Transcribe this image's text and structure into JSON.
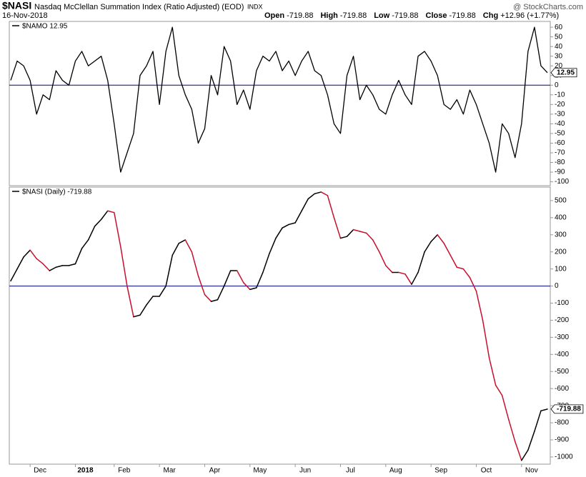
{
  "header": {
    "symbol": "$NASI",
    "name": "Nasdaq McClellan Summation Index (Ratio Adjusted) (EOD)",
    "exchange": "INDX",
    "date": "16-Nov-2018",
    "watermark": "@ StockCharts.com",
    "quote": [
      {
        "label": "Open",
        "text": "-719.88"
      },
      {
        "label": "High",
        "text": "-719.88"
      },
      {
        "label": "Low",
        "text": "-719.88"
      },
      {
        "label": "Close",
        "text": "-719.88"
      },
      {
        "label": "Chg",
        "text": "+12.96 (+1.77%)"
      }
    ]
  },
  "chart_data": [
    {
      "type": "line",
      "ylim": [
        -104,
        66
      ],
      "yticks": [
        60,
        50,
        40,
        30,
        20,
        10,
        0,
        -10,
        -20,
        -30,
        -40,
        -50,
        -60,
        -70,
        -80,
        -90,
        -100
      ],
      "baseline": 0,
      "baseline_color": "#000080",
      "series": [
        {
          "name": "$NAMO 12.95",
          "color": "#000000",
          "values": [
            5,
            25,
            20,
            5,
            -30,
            -10,
            -15,
            15,
            5,
            0,
            25,
            35,
            20,
            25,
            30,
            5,
            -40,
            -90,
            -70,
            -50,
            10,
            20,
            35,
            -20,
            35,
            60,
            10,
            -10,
            -25,
            -60,
            -45,
            10,
            -10,
            40,
            25,
            -20,
            -5,
            -25,
            15,
            30,
            25,
            35,
            15,
            25,
            10,
            25,
            35,
            15,
            10,
            -10,
            -40,
            -50,
            10,
            30,
            -15,
            0,
            -10,
            -25,
            -30,
            -10,
            5,
            -10,
            -20,
            30,
            35,
            25,
            10,
            -20,
            -25,
            -15,
            -30,
            -5,
            -20,
            -40,
            -60,
            -90,
            -40,
            -50,
            -75,
            -40,
            35,
            60,
            20,
            12.95
          ]
        }
      ]
    },
    {
      "type": "line",
      "ylim": [
        -1042,
        579
      ],
      "yticks": [
        500,
        400,
        300,
        200,
        100,
        0,
        -100,
        -200,
        -300,
        -400,
        -500,
        -600,
        -700,
        -800,
        -900,
        -1000
      ],
      "baseline": 0,
      "baseline_color": "#000080",
      "categories": [
        null,
        null,
        null,
        "Dec",
        null,
        null,
        null,
        null,
        null,
        null,
        "2018",
        null,
        null,
        null,
        null,
        null,
        "Feb",
        null,
        null,
        null,
        null,
        null,
        null,
        "Mar",
        null,
        null,
        null,
        null,
        null,
        null,
        "Apr",
        null,
        null,
        null,
        null,
        null,
        null,
        "May",
        null,
        null,
        null,
        null,
        null,
        null,
        "Jun",
        null,
        null,
        null,
        null,
        null,
        null,
        "Jul",
        null,
        null,
        null,
        null,
        null,
        null,
        "Aug",
        null,
        null,
        null,
        null,
        null,
        null,
        "Sep",
        null,
        null,
        null,
        null,
        null,
        null,
        "Oct",
        null,
        null,
        null,
        null,
        null,
        null,
        "Nov",
        null,
        null,
        null,
        null
      ],
      "series": [
        {
          "name": "$NASI (Daily) -719.88",
          "color": "#000000",
          "down_color": "#c8102e",
          "values": [
            30,
            100,
            170,
            210,
            160,
            130,
            90,
            110,
            120,
            120,
            130,
            220,
            270,
            350,
            390,
            440,
            430,
            230,
            0,
            -180,
            -170,
            -110,
            -60,
            -60,
            0,
            180,
            250,
            270,
            200,
            60,
            -50,
            -90,
            -80,
            0,
            90,
            90,
            20,
            -20,
            -10,
            80,
            190,
            280,
            340,
            360,
            370,
            440,
            510,
            540,
            550,
            530,
            400,
            280,
            290,
            330,
            320,
            310,
            270,
            200,
            120,
            80,
            80,
            70,
            10,
            80,
            200,
            260,
            300,
            250,
            180,
            110,
            100,
            50,
            -30,
            -200,
            -420,
            -580,
            -640,
            -780,
            -910,
            -1020,
            -960,
            -850,
            -730,
            -719.88
          ]
        }
      ]
    }
  ]
}
